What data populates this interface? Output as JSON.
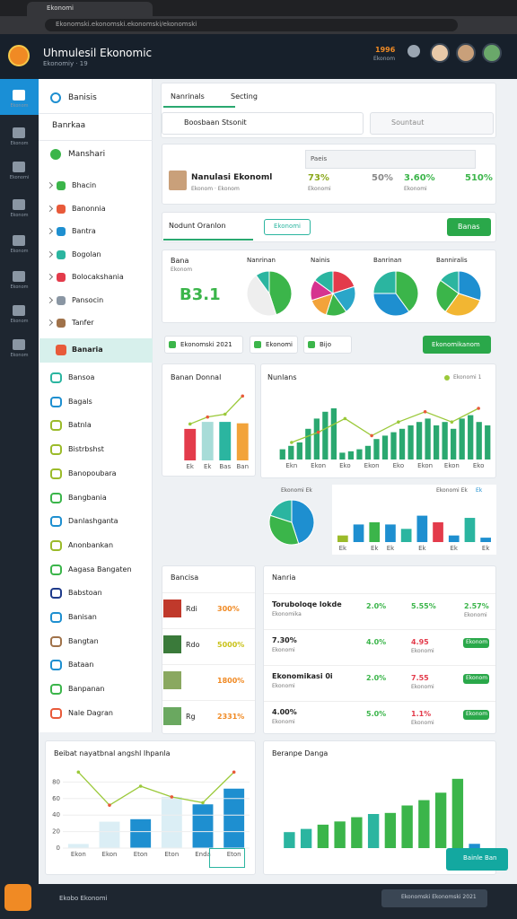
{
  "browser": {
    "tab": "Ekonomi",
    "url": "Ekonomski.ekonomski.ekonomski/ekonomski"
  },
  "header": {
    "title": "Uhmulesil Ekonomic",
    "subtitle": "Ekonomiy · 19",
    "badge": "1996",
    "badge_sub": "Ekonom"
  },
  "rail": [
    "Ekonom",
    "Ekonom",
    "Ekonomi",
    "Ekonom",
    "Ekonom",
    "Ekonom",
    "Ekonom",
    "Ekonom"
  ],
  "sidebar": {
    "title": "Banisis",
    "section": "Banrkaa",
    "group": "Manshari",
    "sub_items": [
      "Bhacin",
      "Banonnia",
      "Bantra",
      "Bogolan",
      "Bolocakshania",
      "Pansocin",
      "Tanfer"
    ],
    "active": "Banaria",
    "items": [
      "Bansoa",
      "Bagals",
      "Batnla",
      "Bistrbshst",
      "Banopoubara",
      "Bangbania",
      "Danlashganta",
      "Anonbankan",
      "Aagasa Bangaten",
      "Babstoan",
      "Banisan",
      "Bangtan",
      "Bataan",
      "Banpanan",
      "Nale Dagran"
    ]
  },
  "tabs": [
    "Nanrinals",
    "Secting"
  ],
  "search": [
    "Boosbaan Stsonit",
    "Sountaut"
  ],
  "profile": {
    "filter": "Paeis",
    "name": "Nanulasi Ekonoml",
    "sub": "Ekonom · Ekonom",
    "stats": [
      {
        "value": "73%",
        "sub": "Ekonomi"
      },
      {
        "value": "50%"
      },
      {
        "value": "3.60%",
        "sub": "Ekonomi"
      },
      {
        "value": "510%"
      }
    ]
  },
  "section": {
    "title": "Nodunt Oranlon",
    "pill": "Ekonomi",
    "button": "Banas"
  },
  "kpi": {
    "label": "Bana",
    "sub": "Ekonom",
    "value": "B3.1"
  },
  "pies": [
    {
      "title": "Nanrinan",
      "values": [
        45,
        45,
        10
      ],
      "colors": [
        "#3bb54a",
        "#eeeeee",
        "#2bb5a0"
      ]
    },
    {
      "title": "Nainis",
      "values": [
        20,
        20,
        15,
        15,
        15,
        15
      ],
      "colors": [
        "#e33b4b",
        "#2aa6c9",
        "#3bb54a",
        "#f2a33a",
        "#d6338f",
        "#2bb5a0"
      ]
    },
    {
      "title": "Banrinan",
      "values": [
        40,
        35,
        25
      ],
      "colors": [
        "#3bb54a",
        "#1e8fd0",
        "#2bb5a0"
      ]
    },
    {
      "title": "Banniralis",
      "values": [
        30,
        30,
        25,
        15
      ],
      "colors": [
        "#1e8fd0",
        "#f2b632",
        "#3bb54a",
        "#2bb5a0"
      ]
    }
  ],
  "toolbar": {
    "items": [
      "Ekonomski 2021",
      "Ekonomi",
      "Bijo"
    ],
    "button": "Ekonomikanom"
  },
  "chart_a": {
    "title": "Banan Donnal",
    "categories": [
      "Ek",
      "Ek",
      "Bas",
      "Ban"
    ],
    "bars": [
      45,
      55,
      55,
      53
    ],
    "colors": [
      "#e33b4b",
      "#a8dcd8",
      "#2bb5a0",
      "#f2a33a"
    ],
    "line": [
      52,
      62,
      66,
      92
    ],
    "ylim": [
      0,
      100
    ]
  },
  "chart_b": {
    "title": "Nunlans",
    "legend": "Ekonomi 1",
    "categories": [
      "Ekn",
      "Ekon",
      "Eko",
      "Ekon",
      "Eko",
      "Ekon",
      "Ekon",
      "Eko"
    ],
    "bars": [
      15,
      20,
      25,
      45,
      60,
      70,
      75,
      10,
      12,
      15,
      20,
      30,
      35,
      40,
      45,
      50,
      55,
      60,
      50,
      55,
      45,
      60,
      65,
      55,
      50
    ],
    "color": "#2aa870",
    "line": [
      25,
      40,
      60,
      35,
      55,
      70,
      55,
      75
    ],
    "line_color": "#9bc93a",
    "ylim": [
      0,
      100
    ]
  },
  "pie_small": {
    "title": "Ekonomi Ek",
    "values": [
      45,
      35,
      20
    ],
    "colors": [
      "#1e8fd0",
      "#3bb54a",
      "#2bb5a0"
    ]
  },
  "chart_c": {
    "title": "Ekonomi Ek",
    "value_label": "Ek",
    "categories": [
      "Ek",
      null,
      "Ek",
      "Ek",
      null,
      "Ek",
      null,
      "Ek",
      null,
      "Ek"
    ],
    "bars": [
      15,
      40,
      45,
      40,
      30,
      60,
      45,
      15,
      55,
      10
    ],
    "colors": [
      "#9bbb2a",
      "#1e8fd0",
      "#3bb54a",
      "#1e8fd0",
      "#2bb5a0",
      "#1e8fd0",
      "#e33b4b",
      "#1e8fd0",
      "#2bb5a0",
      "#1e8fd0"
    ],
    "ylim": [
      0,
      100
    ]
  },
  "table_left": {
    "title": "Bancisa",
    "rows": [
      {
        "name": "Rdi",
        "value": "300%"
      },
      {
        "name": "Rdo",
        "value": "5000%"
      },
      {
        "value": "1800%"
      },
      {
        "name": "Rg",
        "value": "2331%"
      }
    ]
  },
  "table_right": {
    "title": "Nanria",
    "rows": [
      {
        "name": "Toruboloqe lokde",
        "sub": "Ekonomika",
        "a": "2.0%",
        "b": "5.55%",
        "c": "2.57%",
        "c_sub": "Ekonomi"
      },
      {
        "name": "7.30%",
        "sub": "Ekonomi",
        "a": "4.0%",
        "b": "4.95",
        "b_sub": "Ekonomi",
        "pill": "Ekonom"
      },
      {
        "name": "Ekonomikasi 0i",
        "sub": "Ekonomi",
        "a": "2.0%",
        "b": "7.55",
        "b_sub": "Ekonomi",
        "pill": "Ekonom"
      },
      {
        "name": "4.00%",
        "sub": "Ekonomi",
        "a": "5.0%",
        "b": "1.1%",
        "b_sub": "Ekonomi",
        "pill": "Ekonom"
      }
    ]
  },
  "chart_d": {
    "title": "Beibat nayatbnal angshl Ihpanla",
    "categories": [
      "Ekon",
      "Ekon",
      "Eton",
      "Eton",
      "Enda",
      "Eton"
    ],
    "bars": [
      5,
      32,
      35,
      62,
      53,
      72
    ],
    "colors": [
      "#dbeef5",
      "#dbeef5",
      "#1e8fd0",
      "#dbeef5",
      "#1e8fd0",
      "#1e8fd0"
    ],
    "line": [
      92,
      52,
      75,
      62,
      55,
      92
    ],
    "line_color": "#9bc93a",
    "ylim": [
      0,
      100
    ],
    "yticks": [
      0,
      20,
      40,
      60,
      80
    ]
  },
  "chart_e": {
    "title": "Beranpe Danga",
    "bars": [
      15,
      18,
      22,
      25,
      29,
      32,
      33,
      40,
      45,
      52,
      65,
      4
    ],
    "colors": [
      "#2bb5a0",
      "#2bb5a0",
      "#3bb54a",
      "#3bb54a",
      "#3bb54a",
      "#2bb5a0",
      "#3bb54a",
      "#3bb54a",
      "#3bb54a",
      "#3bb54a",
      "#3bb54a",
      "#1e8fd0"
    ],
    "ylim": [
      0,
      80
    ]
  },
  "floating": "Bainle Ban",
  "footer": {
    "left": "Ekobo Ekonomi",
    "right": "Ekonomski Ekonomski 2021"
  }
}
